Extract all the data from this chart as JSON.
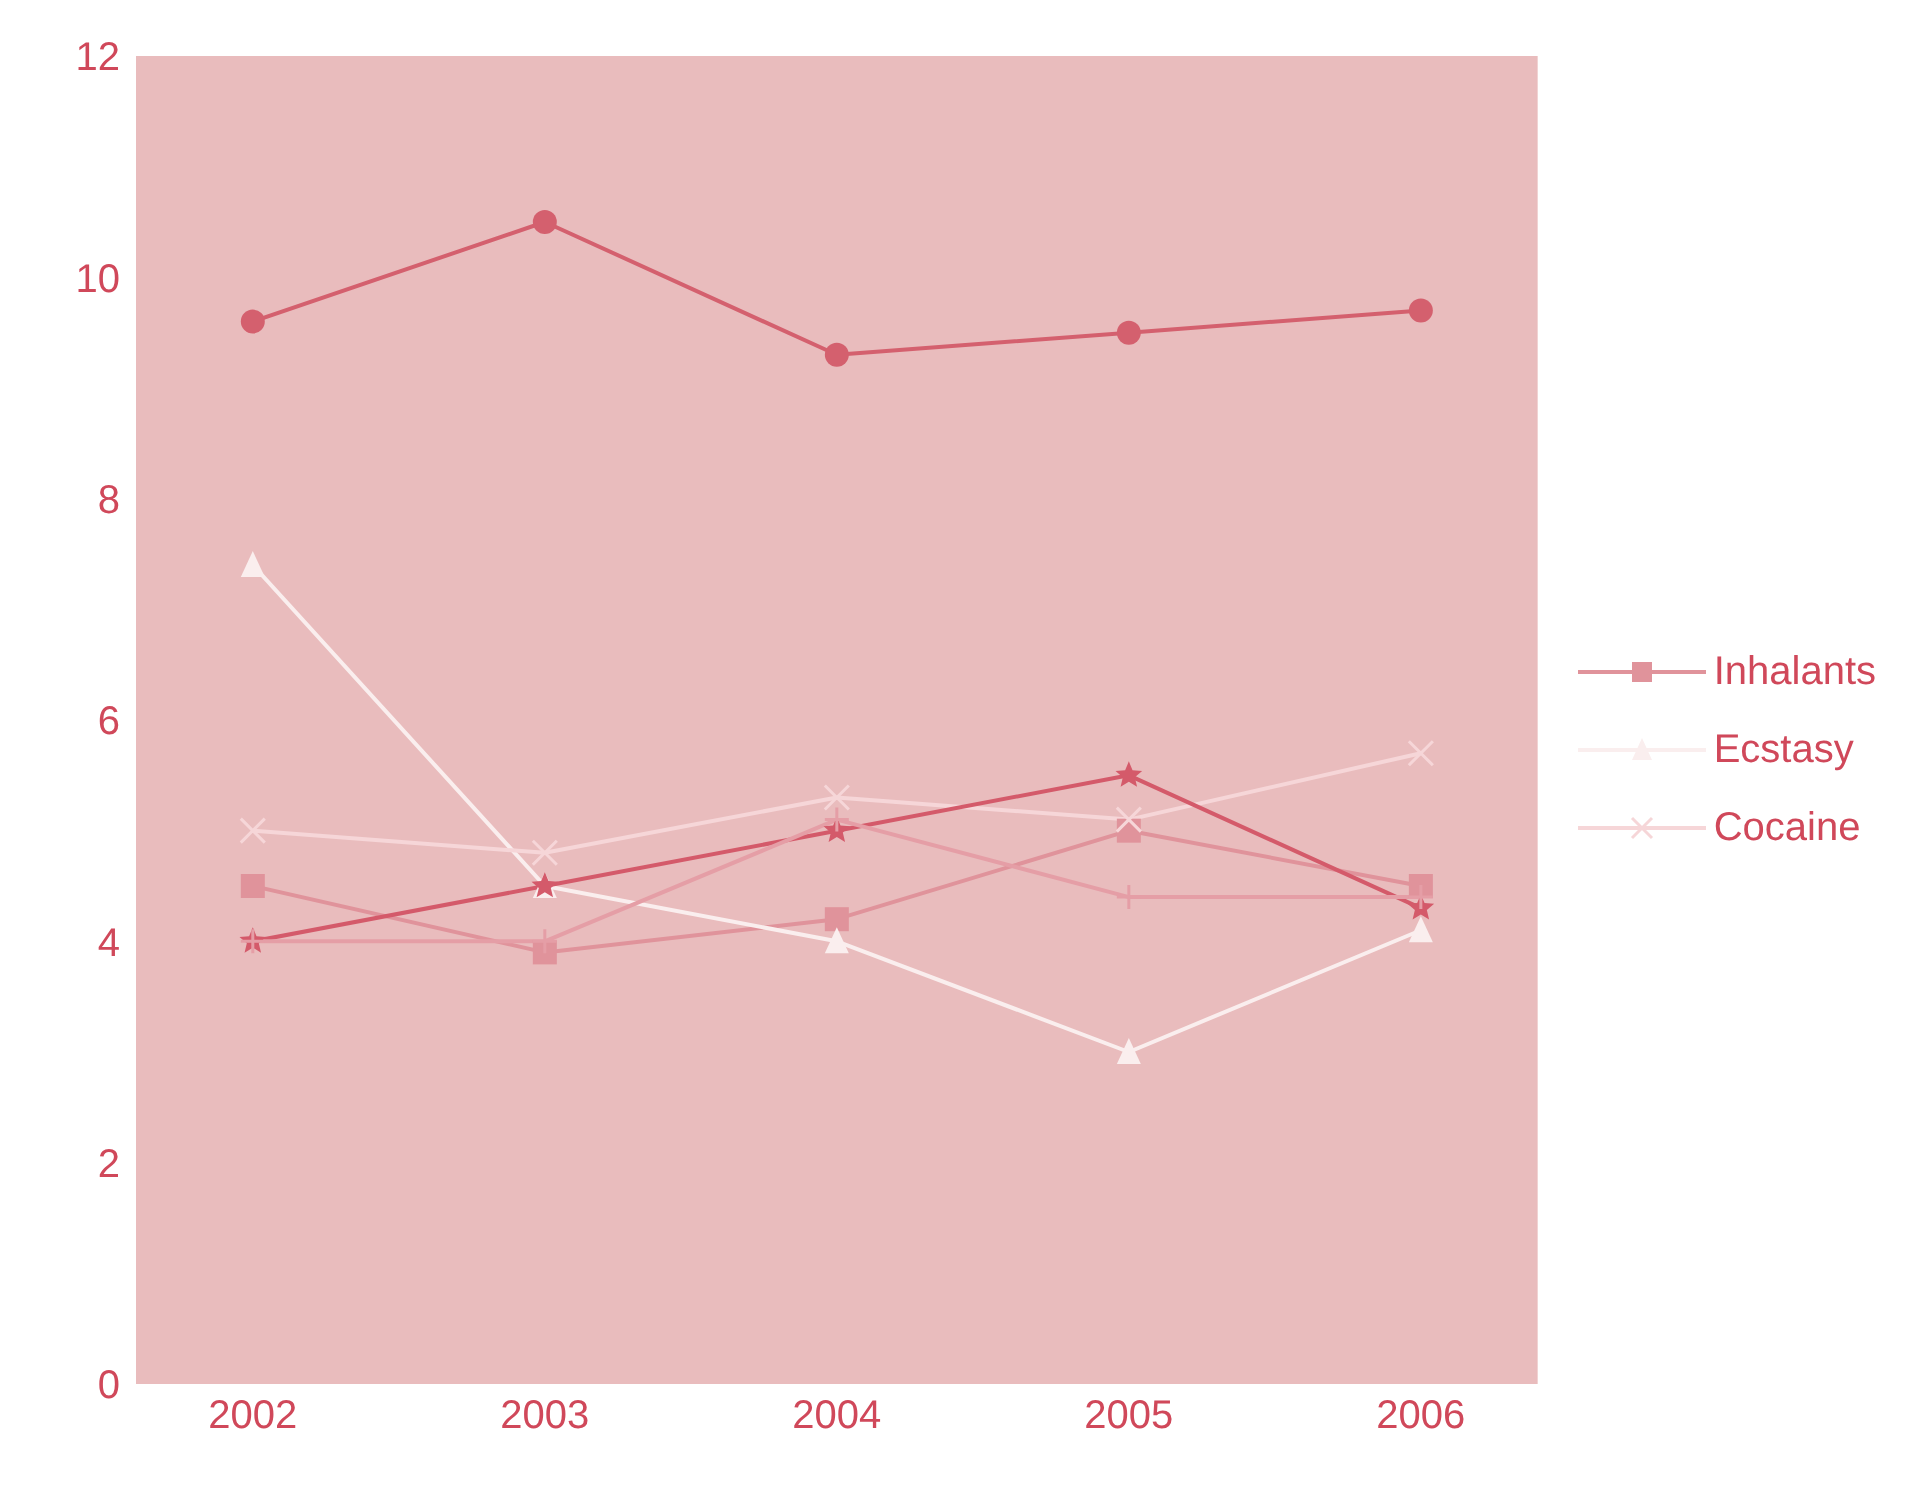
{
  "chart_data": {
    "type": "line",
    "categories": [
      "2002",
      "2003",
      "2004",
      "2005",
      "2006"
    ],
    "ylim": [
      0,
      12
    ],
    "yticks": [
      0,
      2,
      4,
      6,
      8,
      10,
      12
    ],
    "grid": false,
    "legend": "right",
    "series": [
      {
        "name": "Inhalants",
        "color": "#e0939b",
        "marker": "square",
        "values": [
          4.5,
          3.9,
          4.2,
          5.0,
          4.5
        ]
      },
      {
        "name": "Ecstasy",
        "color": "#faeeee",
        "marker": "triangle",
        "values": [
          7.4,
          4.5,
          4.0,
          3.0,
          4.1
        ]
      },
      {
        "name": "Cocaine",
        "color": "#f6d6d8",
        "marker": "cross",
        "values": [
          5.0,
          4.8,
          5.3,
          5.1,
          5.7
        ]
      },
      {
        "color": "#d45a6a",
        "marker": "star",
        "values": [
          4.0,
          4.5,
          5.0,
          5.5,
          4.3
        ]
      },
      {
        "color": "#d4606e",
        "marker": "circle",
        "values": [
          9.6,
          10.5,
          9.3,
          9.5,
          9.7
        ]
      },
      {
        "color": "#e59ea6",
        "marker": "plus",
        "values": [
          4.0,
          4.0,
          5.1,
          4.4,
          4.4
        ]
      }
    ]
  }
}
